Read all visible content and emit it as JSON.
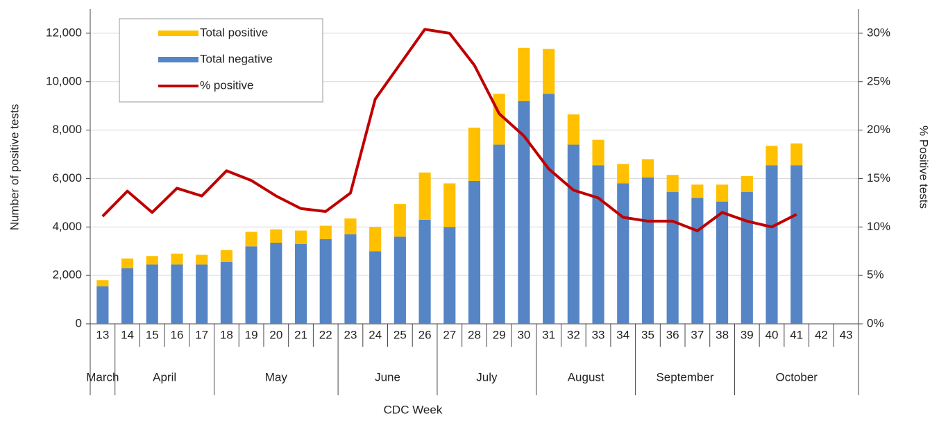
{
  "chart_data": {
    "type": "bar_line",
    "categories": [
      "13",
      "14",
      "15",
      "16",
      "17",
      "18",
      "19",
      "20",
      "21",
      "22",
      "23",
      "24",
      "25",
      "26",
      "27",
      "28",
      "29",
      "30",
      "31",
      "32",
      "33",
      "34",
      "35",
      "36",
      "37",
      "38",
      "39",
      "40",
      "41",
      "42",
      "43"
    ],
    "month_groups": [
      {
        "label": "March",
        "span": 1
      },
      {
        "label": "April",
        "span": 4
      },
      {
        "label": "May",
        "span": 5
      },
      {
        "label": "June",
        "span": 4
      },
      {
        "label": "July",
        "span": 4
      },
      {
        "label": "August",
        "span": 4
      },
      {
        "label": "September",
        "span": 4
      },
      {
        "label": "October",
        "span": 5
      }
    ],
    "series": [
      {
        "name": "Total positive",
        "type": "bar",
        "color": "#ffc000",
        "axis": "y",
        "values": [
          250,
          400,
          350,
          450,
          400,
          500,
          600,
          550,
          550,
          550,
          650,
          1000,
          1350,
          1950,
          1800,
          2200,
          2100,
          2200,
          1850,
          1250,
          1050,
          800,
          750,
          700,
          550,
          700,
          650,
          800,
          900,
          null,
          null
        ]
      },
      {
        "name": "Total negative",
        "type": "bar",
        "color": "#5585c5",
        "axis": "y",
        "values": [
          1550,
          2300,
          2450,
          2450,
          2450,
          2550,
          3200,
          3350,
          3300,
          3500,
          3700,
          3000,
          3600,
          4300,
          4000,
          5900,
          7400,
          9200,
          9500,
          7400,
          6550,
          5800,
          6050,
          5450,
          5200,
          5050,
          5450,
          6550,
          6550,
          null,
          null
        ]
      },
      {
        "name": "% positive",
        "type": "line",
        "color": "#c00000",
        "axis": "y2",
        "values": [
          11.1,
          13.7,
          11.5,
          14.0,
          13.2,
          15.8,
          14.8,
          13.2,
          11.9,
          11.6,
          13.5,
          23.2,
          26.8,
          30.4,
          30.0,
          26.7,
          21.7,
          19.4,
          16.0,
          13.8,
          13.0,
          11.0,
          10.6,
          10.6,
          9.6,
          11.5,
          10.6,
          10.0,
          11.3,
          null,
          null
        ]
      }
    ],
    "ylim": [
      0,
      13000
    ],
    "yticks": [
      0,
      {
        "value": 2000,
        "label": "2,000"
      },
      {
        "value": 4000,
        "label": "4,000"
      },
      {
        "value": 6000,
        "label": "6,000"
      },
      {
        "value": 8000,
        "label": "8,000"
      },
      {
        "value": 10000,
        "label": "10,000"
      },
      {
        "value": 12000,
        "label": "12,000"
      }
    ],
    "y2lim": [
      0,
      32.5
    ],
    "y2ticks": [
      {
        "value": 0,
        "label": "0%"
      },
      {
        "value": 5,
        "label": "5%"
      },
      {
        "value": 10,
        "label": "10%"
      },
      {
        "value": 15,
        "label": "15%"
      },
      {
        "value": 20,
        "label": "20%"
      },
      {
        "value": 25,
        "label": "25%"
      },
      {
        "value": 30,
        "label": "30%"
      }
    ],
    "ylabel": "Number of positive tests",
    "y2label": "% Positive tests",
    "xlabel": "CDC Week",
    "grid": true
  }
}
